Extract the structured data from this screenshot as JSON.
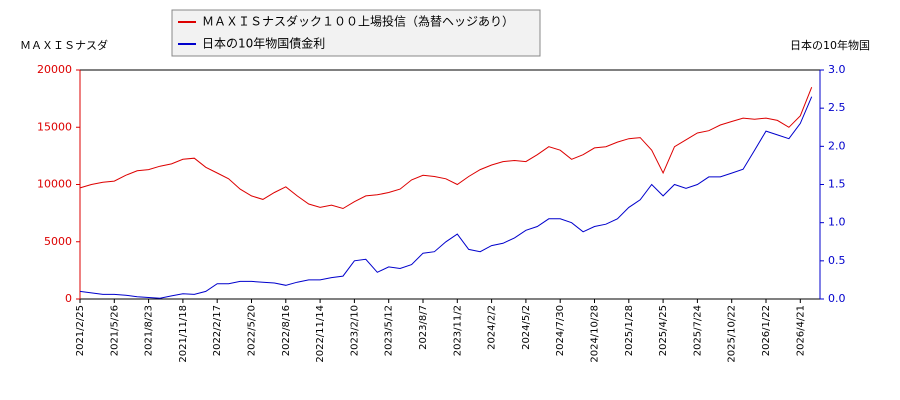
{
  "chart_data": {
    "type": "line",
    "ylabel": "ＭＡＸＩＳナスダ",
    "y2label": "日本の10年物国",
    "categories": [
      "2021/2/25",
      null,
      null,
      "2021/5/26",
      null,
      null,
      "2021/8/23",
      null,
      null,
      "2021/11/18",
      null,
      null,
      "2022/2/17",
      null,
      null,
      "2022/5/20",
      null,
      null,
      "2022/8/16",
      null,
      null,
      "2022/11/14",
      null,
      null,
      "2023/2/10",
      null,
      null,
      "2023/5/12",
      null,
      null,
      "2023/8/7",
      null,
      null,
      "2023/11/2",
      null,
      null,
      "2024/2/2",
      null,
      null,
      "2024/5/2",
      null,
      null,
      "2024/7/30",
      null,
      null,
      "2024/10/28",
      null,
      null,
      "2025/1/28",
      null,
      null,
      "2025/4/25",
      null,
      null,
      "2025/7/24",
      null,
      null,
      "2025/10/22",
      null,
      null,
      "2026/1/22",
      null,
      null,
      "2026/4/21",
      null
    ],
    "series": [
      {
        "name": "ＭＡＸＩＳナスダック１００上場投信（為替ヘッジあり）",
        "color": "#dd0000",
        "values": [
          9700,
          10000,
          10200,
          10300,
          10800,
          11200,
          11300,
          11600,
          11800,
          12200,
          12300,
          11500,
          11000,
          10500,
          9600,
          9000,
          8700,
          9300,
          9800,
          9000,
          8300,
          8000,
          8200,
          7900,
          8500,
          9000,
          9100,
          9300,
          9600,
          10400,
          10800,
          10700,
          10500,
          10000,
          10700,
          11300,
          11700,
          12000,
          12100,
          12000,
          12600,
          13300,
          13000,
          12200,
          12600,
          13200,
          13300,
          13700,
          14000,
          14100,
          13000,
          11000,
          13300,
          13900,
          14500,
          14700,
          15200,
          15500,
          15800,
          15700,
          15800,
          15600,
          15000,
          16000,
          18500
        ]
      },
      {
        "name": "日本の10年物国債金利",
        "color": "#0000cc",
        "axis": "y2",
        "values": [
          0.1,
          0.08,
          0.06,
          0.06,
          0.05,
          0.03,
          0.02,
          0.01,
          0.04,
          0.07,
          0.06,
          0.1,
          0.2,
          0.2,
          0.23,
          0.23,
          0.22,
          0.21,
          0.18,
          0.22,
          0.25,
          0.25,
          0.28,
          0.3,
          0.5,
          0.52,
          0.35,
          0.42,
          0.4,
          0.45,
          0.6,
          0.62,
          0.75,
          0.85,
          0.65,
          0.62,
          0.7,
          0.73,
          0.8,
          0.9,
          0.95,
          1.05,
          1.05,
          1.0,
          0.88,
          0.95,
          0.98,
          1.05,
          1.2,
          1.3,
          1.5,
          1.35,
          1.5,
          1.45,
          1.5,
          1.6,
          1.6,
          1.65,
          1.7,
          1.95,
          2.2,
          2.15,
          2.1,
          2.3,
          2.65
        ]
      }
    ],
    "ylim": [
      0,
      20000
    ],
    "yticks": [
      0,
      5000,
      10000,
      15000,
      20000
    ],
    "y2lim": [
      0,
      3
    ],
    "y2ticks": [
      {
        "value": 0,
        "label": "0.0"
      },
      {
        "value": 0.5,
        "label": "0.5"
      },
      {
        "value": 1,
        "label": "1.0"
      },
      {
        "value": 1.5,
        "label": "1.5"
      },
      {
        "value": 2,
        "label": "2.0"
      },
      {
        "value": 2.5,
        "label": "2.5"
      },
      {
        "value": 3,
        "label": "3.0"
      }
    ],
    "grid": false
  }
}
